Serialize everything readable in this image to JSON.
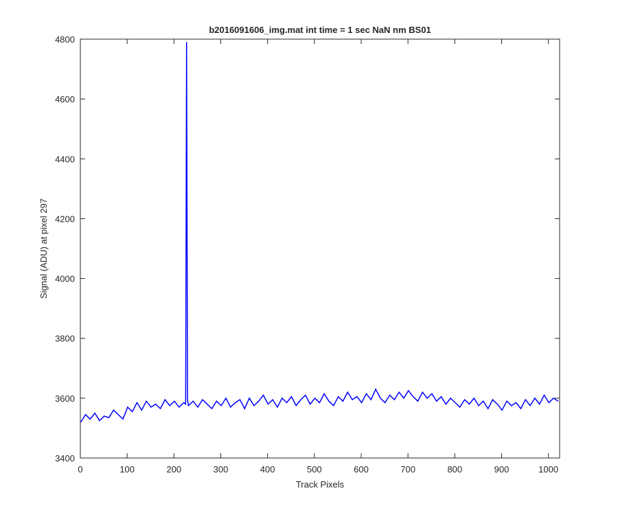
{
  "chart_data": {
    "type": "line",
    "title": "b2016091606_img.mat int time = 1 sec  NaN nm BS01",
    "xlabel": "Track Pixels",
    "ylabel": "Signal (ADU) at pixel 297",
    "xlim": [
      0,
      1024
    ],
    "ylim": [
      3400,
      4800
    ],
    "xticks": [
      0,
      100,
      200,
      300,
      400,
      500,
      600,
      700,
      800,
      900,
      1000
    ],
    "yticks": [
      3400,
      3600,
      3800,
      4000,
      4200,
      4400,
      4600,
      4800
    ],
    "grid": false,
    "series": [
      {
        "color": "#0000ff",
        "x": [
          1,
          11,
          21,
          31,
          41,
          51,
          61,
          71,
          81,
          91,
          101,
          111,
          121,
          131,
          141,
          151,
          161,
          171,
          181,
          191,
          201,
          211,
          221,
          225,
          227,
          229,
          231,
          241,
          251,
          261,
          271,
          281,
          291,
          301,
          311,
          321,
          331,
          341,
          351,
          361,
          371,
          381,
          391,
          401,
          411,
          421,
          431,
          441,
          451,
          461,
          471,
          481,
          491,
          501,
          511,
          521,
          531,
          541,
          551,
          561,
          571,
          581,
          591,
          601,
          611,
          621,
          631,
          641,
          651,
          661,
          671,
          681,
          691,
          701,
          711,
          721,
          731,
          741,
          751,
          761,
          771,
          781,
          791,
          801,
          811,
          821,
          831,
          841,
          851,
          861,
          871,
          881,
          891,
          901,
          911,
          921,
          931,
          941,
          951,
          961,
          971,
          981,
          991,
          1001,
          1011,
          1021
        ],
        "values": [
          3520,
          3545,
          3530,
          3550,
          3525,
          3540,
          3535,
          3560,
          3545,
          3530,
          3570,
          3555,
          3585,
          3560,
          3590,
          3570,
          3580,
          3565,
          3595,
          3575,
          3590,
          3570,
          3585,
          3580,
          4790,
          3595,
          3575,
          3590,
          3570,
          3595,
          3580,
          3565,
          3590,
          3575,
          3600,
          3570,
          3585,
          3595,
          3565,
          3600,
          3575,
          3590,
          3610,
          3580,
          3595,
          3570,
          3600,
          3585,
          3605,
          3575,
          3595,
          3610,
          3580,
          3600,
          3585,
          3615,
          3590,
          3575,
          3605,
          3590,
          3620,
          3595,
          3605,
          3585,
          3615,
          3595,
          3630,
          3600,
          3585,
          3610,
          3595,
          3620,
          3600,
          3625,
          3605,
          3590,
          3620,
          3600,
          3615,
          3590,
          3605,
          3580,
          3600,
          3585,
          3570,
          3595,
          3580,
          3600,
          3575,
          3590,
          3565,
          3595,
          3580,
          3560,
          3590,
          3575,
          3585,
          3565,
          3595,
          3575,
          3600,
          3580,
          3610,
          3585,
          3600,
          3590
        ]
      }
    ]
  }
}
